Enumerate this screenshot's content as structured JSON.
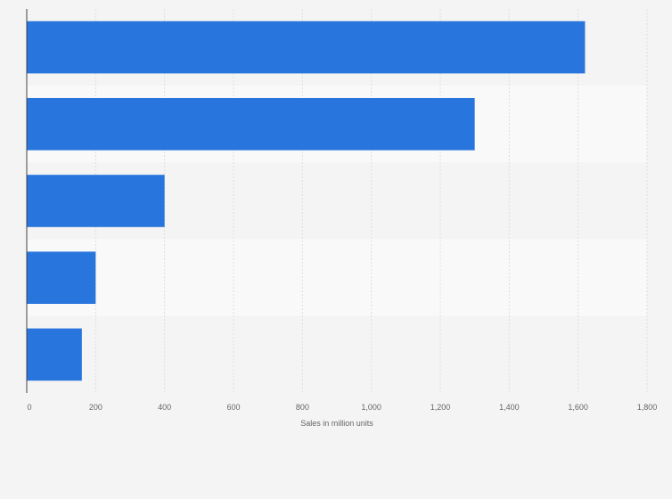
{
  "chart_data": {
    "type": "bar",
    "orientation": "horizontal",
    "categories": [
      "",
      "",
      "",
      "",
      ""
    ],
    "values": [
      1620,
      1300,
      400,
      200,
      160
    ],
    "title": "",
    "xlabel": "Sales in million units",
    "ylabel": "",
    "xlim": [
      0,
      1800
    ],
    "xticks": [
      0,
      200,
      400,
      600,
      800,
      1000,
      1200,
      1400,
      1600,
      1800
    ],
    "xtick_labels": [
      "0",
      "200",
      "400",
      "600",
      "800",
      "1,000",
      "1,200",
      "1,400",
      "1,600",
      "1,800"
    ],
    "grid": "vertical",
    "legend": "none",
    "colors": {
      "bar": "#2876dd",
      "band_a": "#f4f4f4",
      "band_b": "#f9f9f9",
      "grid": "#dedede",
      "axis": "#444444",
      "text": "#666666"
    }
  }
}
